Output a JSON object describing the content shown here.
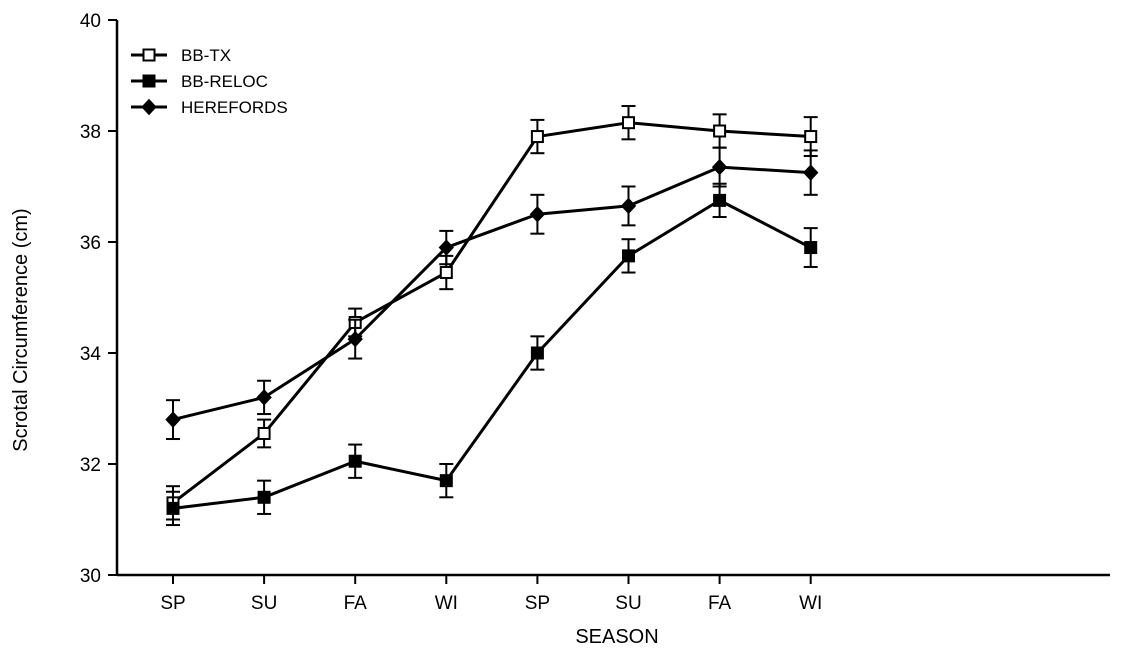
{
  "chart_data": {
    "type": "line",
    "title": "",
    "xlabel": "SEASON",
    "ylabel": "Scrotal Circumference (cm)",
    "categories": [
      "SP",
      "SU",
      "FA",
      "WI",
      "SP",
      "SU",
      "FA",
      "WI"
    ],
    "ylim": [
      30,
      40
    ],
    "yticks": [
      30,
      32,
      34,
      36,
      38,
      40
    ],
    "grid": false,
    "legend_position": "top-left",
    "error_bars": true,
    "series": [
      {
        "name": "BB-TX",
        "marker": "open-square",
        "color": "#000000",
        "values": [
          31.3,
          32.55,
          34.55,
          35.45,
          37.9,
          38.15,
          38.0,
          37.9
        ],
        "errors": [
          0.3,
          0.25,
          0.25,
          0.3,
          0.3,
          0.3,
          0.3,
          0.35
        ]
      },
      {
        "name": "BB-RELOC",
        "marker": "filled-square",
        "color": "#000000",
        "values": [
          31.2,
          31.4,
          32.05,
          31.7,
          34.0,
          35.75,
          36.75,
          35.9
        ],
        "errors": [
          0.3,
          0.3,
          0.3,
          0.3,
          0.3,
          0.3,
          0.3,
          0.35
        ]
      },
      {
        "name": "HEREFORDS",
        "marker": "filled-diamond",
        "color": "#000000",
        "values": [
          32.8,
          33.2,
          34.25,
          35.9,
          36.5,
          36.65,
          37.35,
          37.25
        ],
        "errors": [
          0.35,
          0.3,
          0.35,
          0.3,
          0.35,
          0.35,
          0.35,
          0.4
        ]
      }
    ]
  }
}
